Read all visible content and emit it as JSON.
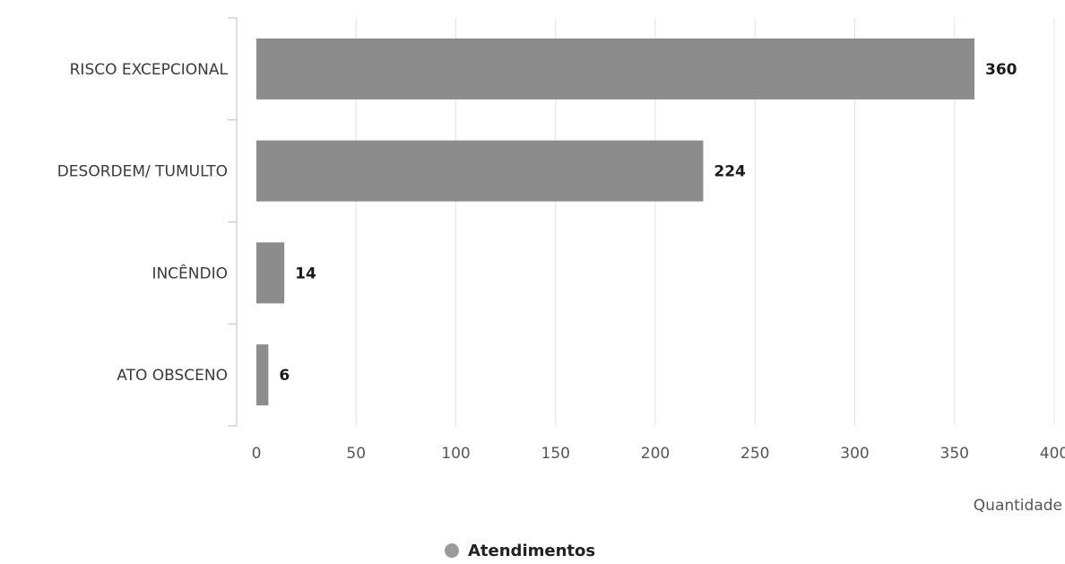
{
  "chart_data": {
    "type": "bar",
    "orientation": "horizontal",
    "categories": [
      "RISCO EXCEPCIONAL",
      "DESORDEM/ TUMULTO",
      "INCÊNDIO",
      "ATO OBSCENO"
    ],
    "series": [
      {
        "name": "Atendimentos",
        "values": [
          360,
          224,
          14,
          6
        ]
      }
    ],
    "title": "",
    "xlabel": "Quantidade",
    "ylabel": "",
    "xlim": [
      0,
      400
    ],
    "x_ticks": [
      0,
      50,
      100,
      150,
      200,
      250,
      300,
      350,
      400
    ],
    "grid": "vertical",
    "legend": "bottom-center",
    "data_labels": true,
    "colors": {
      "bar": "#8c8c8c",
      "grid": "#e6e6e6",
      "axis": "#bdbdbd",
      "legend_marker": "#9a9a9a"
    }
  }
}
